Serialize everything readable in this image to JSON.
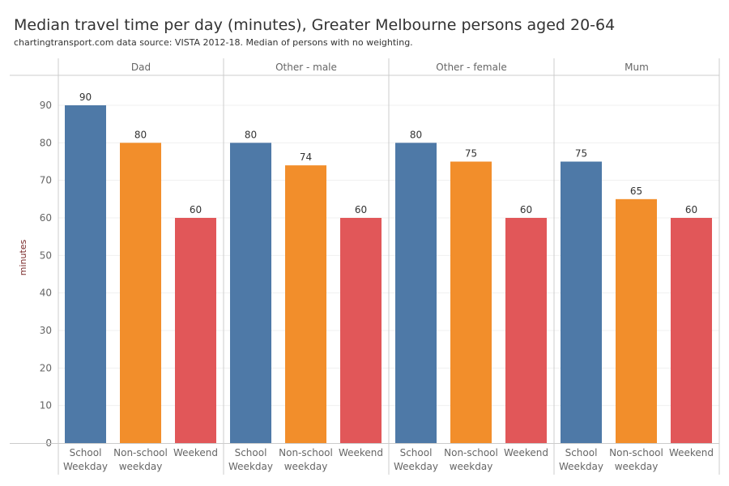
{
  "chart_data": {
    "type": "bar",
    "title": "Median travel time per day (minutes), Greater Melbourne persons aged 20-64",
    "subtitle": "chartingtransport.com  data source: VISTA 2012-18. Median of persons with no weighting.",
    "ylabel": "minutes",
    "ylim": [
      0,
      90
    ],
    "yticks": [
      0,
      10,
      20,
      30,
      40,
      50,
      60,
      70,
      80,
      90
    ],
    "categories": [
      [
        "School",
        "Weekday"
      ],
      [
        "Non-school",
        "weekday"
      ],
      [
        "Weekend"
      ]
    ],
    "colors": [
      "#4e79a7",
      "#f28e2b",
      "#e15759"
    ],
    "panels": [
      {
        "name": "Dad",
        "values": [
          90,
          80,
          60
        ]
      },
      {
        "name": "Other - male",
        "values": [
          80,
          74,
          60
        ]
      },
      {
        "name": "Other - female",
        "values": [
          80,
          75,
          60
        ]
      },
      {
        "name": "Mum",
        "values": [
          75,
          65,
          60
        ]
      }
    ]
  }
}
